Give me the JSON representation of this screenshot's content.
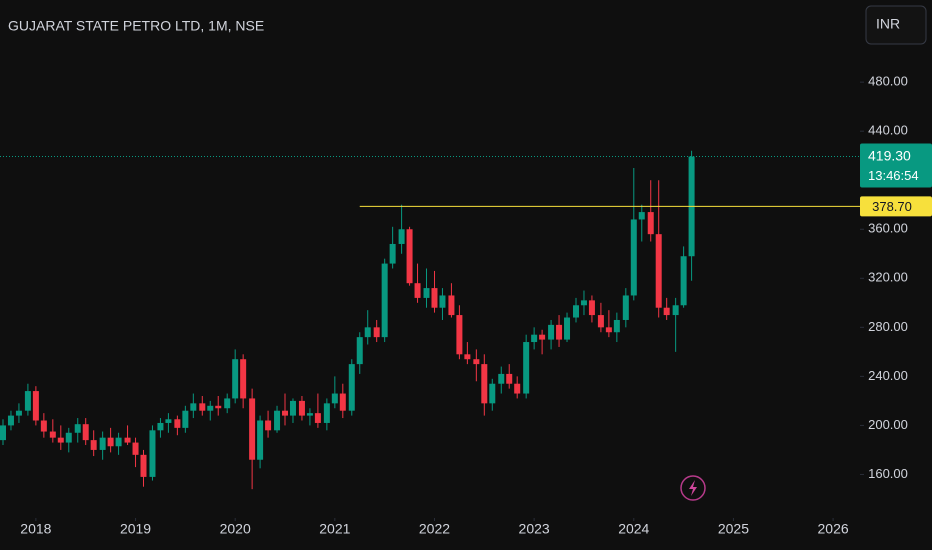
{
  "chart_data": {
    "type": "candlestick",
    "title": "GUJARAT STATE PETRO LTD, 1M, NSE",
    "currency": "INR",
    "up_color": "#089981",
    "down_color": "#f23645",
    "x": [
      2017.67,
      2017.75,
      2017.83,
      2017.92,
      2018.0,
      2018.08,
      2018.17,
      2018.25,
      2018.33,
      2018.42,
      2018.5,
      2018.58,
      2018.67,
      2018.75,
      2018.83,
      2018.92,
      2019.0,
      2019.08,
      2019.17,
      2019.25,
      2019.33,
      2019.42,
      2019.5,
      2019.58,
      2019.67,
      2019.75,
      2019.83,
      2019.92,
      2020.0,
      2020.08,
      2020.17,
      2020.25,
      2020.33,
      2020.42,
      2020.5,
      2020.58,
      2020.67,
      2020.75,
      2020.83,
      2020.92,
      2021.0,
      2021.08,
      2021.17,
      2021.25,
      2021.33,
      2021.42,
      2021.5,
      2021.58,
      2021.67,
      2021.75,
      2021.83,
      2021.92,
      2022.0,
      2022.08,
      2022.17,
      2022.25,
      2022.33,
      2022.42,
      2022.5,
      2022.58,
      2022.67,
      2022.75,
      2022.83,
      2022.92,
      2023.0,
      2023.08,
      2023.17,
      2023.25,
      2023.33,
      2023.42,
      2023.5,
      2023.58,
      2023.67,
      2023.75,
      2023.83,
      2023.92,
      2024.0,
      2024.08,
      2024.17,
      2024.25,
      2024.33,
      2024.42,
      2024.5,
      2024.58
    ],
    "open": [
      188,
      200,
      208,
      212,
      228,
      204,
      195,
      190,
      186,
      194,
      201,
      188,
      180,
      190,
      183,
      190,
      186,
      176,
      158,
      196,
      202,
      205,
      198,
      212,
      218,
      212,
      216,
      214,
      222,
      254,
      222,
      172,
      204,
      196,
      212,
      208,
      220,
      208,
      210,
      202,
      218,
      226,
      212,
      250,
      272,
      280,
      272,
      332,
      348,
      360,
      316,
      304,
      312,
      296,
      306,
      290,
      258,
      254,
      250,
      218,
      234,
      242,
      234,
      226,
      268,
      274,
      270,
      282,
      270,
      288,
      298,
      302,
      290,
      280,
      276,
      286,
      306,
      368,
      374,
      356,
      296,
      290,
      298,
      338
    ],
    "high": [
      205,
      212,
      218,
      234,
      232,
      210,
      205,
      200,
      198,
      206,
      206,
      196,
      195,
      198,
      194,
      200,
      190,
      180,
      200,
      206,
      210,
      208,
      216,
      226,
      224,
      220,
      224,
      226,
      262,
      258,
      230,
      208,
      212,
      216,
      226,
      222,
      224,
      214,
      226,
      222,
      240,
      234,
      254,
      276,
      294,
      286,
      336,
      362,
      380,
      362,
      332,
      328,
      326,
      312,
      316,
      298,
      268,
      262,
      258,
      238,
      248,
      250,
      240,
      274,
      280,
      278,
      286,
      290,
      292,
      304,
      310,
      306,
      300,
      294,
      292,
      312,
      410,
      380,
      400,
      400,
      304,
      304,
      346,
      424
    ],
    "low": [
      184,
      196,
      202,
      208,
      200,
      190,
      186,
      180,
      178,
      186,
      184,
      175,
      172,
      178,
      176,
      184,
      166,
      150,
      155,
      190,
      194,
      192,
      194,
      206,
      208,
      204,
      208,
      210,
      218,
      214,
      148,
      165,
      190,
      194,
      200,
      202,
      204,
      200,
      198,
      196,
      214,
      206,
      208,
      242,
      266,
      268,
      268,
      328,
      340,
      314,
      300,
      296,
      292,
      286,
      288,
      254,
      250,
      236,
      208,
      212,
      226,
      230,
      222,
      222,
      262,
      258,
      262,
      264,
      268,
      284,
      290,
      284,
      276,
      272,
      268,
      280,
      302,
      350,
      350,
      288,
      286,
      260,
      296,
      318
    ],
    "close": [
      200,
      208,
      212,
      228,
      204,
      195,
      190,
      186,
      194,
      201,
      188,
      180,
      190,
      183,
      190,
      186,
      176,
      158,
      196,
      202,
      205,
      198,
      212,
      218,
      212,
      216,
      214,
      222,
      254,
      222,
      172,
      204,
      196,
      212,
      208,
      220,
      208,
      210,
      202,
      218,
      226,
      212,
      250,
      272,
      280,
      272,
      332,
      348,
      360,
      316,
      304,
      312,
      296,
      306,
      290,
      258,
      254,
      250,
      218,
      234,
      242,
      234,
      226,
      268,
      274,
      270,
      282,
      270,
      288,
      298,
      302,
      290,
      280,
      276,
      286,
      306,
      368,
      374,
      356,
      296,
      290,
      298,
      338,
      419.3
    ],
    "xlim": [
      2017.64,
      2026.27
    ],
    "xticks": [
      2018,
      2019,
      2020,
      2021,
      2022,
      2023,
      2024,
      2025,
      2026
    ],
    "ylim": [
      131,
      547
    ],
    "yticks": [
      {
        "value": 160,
        "label": "160.00"
      },
      {
        "value": 200,
        "label": "200.00"
      },
      {
        "value": 240,
        "label": "240.00"
      },
      {
        "value": 280,
        "label": "280.00"
      },
      {
        "value": 320,
        "label": "320.00"
      },
      {
        "value": 360,
        "label": "360.00"
      },
      {
        "value": 440,
        "label": "440.00"
      },
      {
        "value": 480,
        "label": "480.00"
      }
    ],
    "last_price": {
      "value": 419.3,
      "label": "419.30",
      "countdown": "13:46:54"
    },
    "hline": {
      "value": 378.7,
      "label": "378.70",
      "start": 2021.25,
      "color": "#f7e03c"
    }
  }
}
